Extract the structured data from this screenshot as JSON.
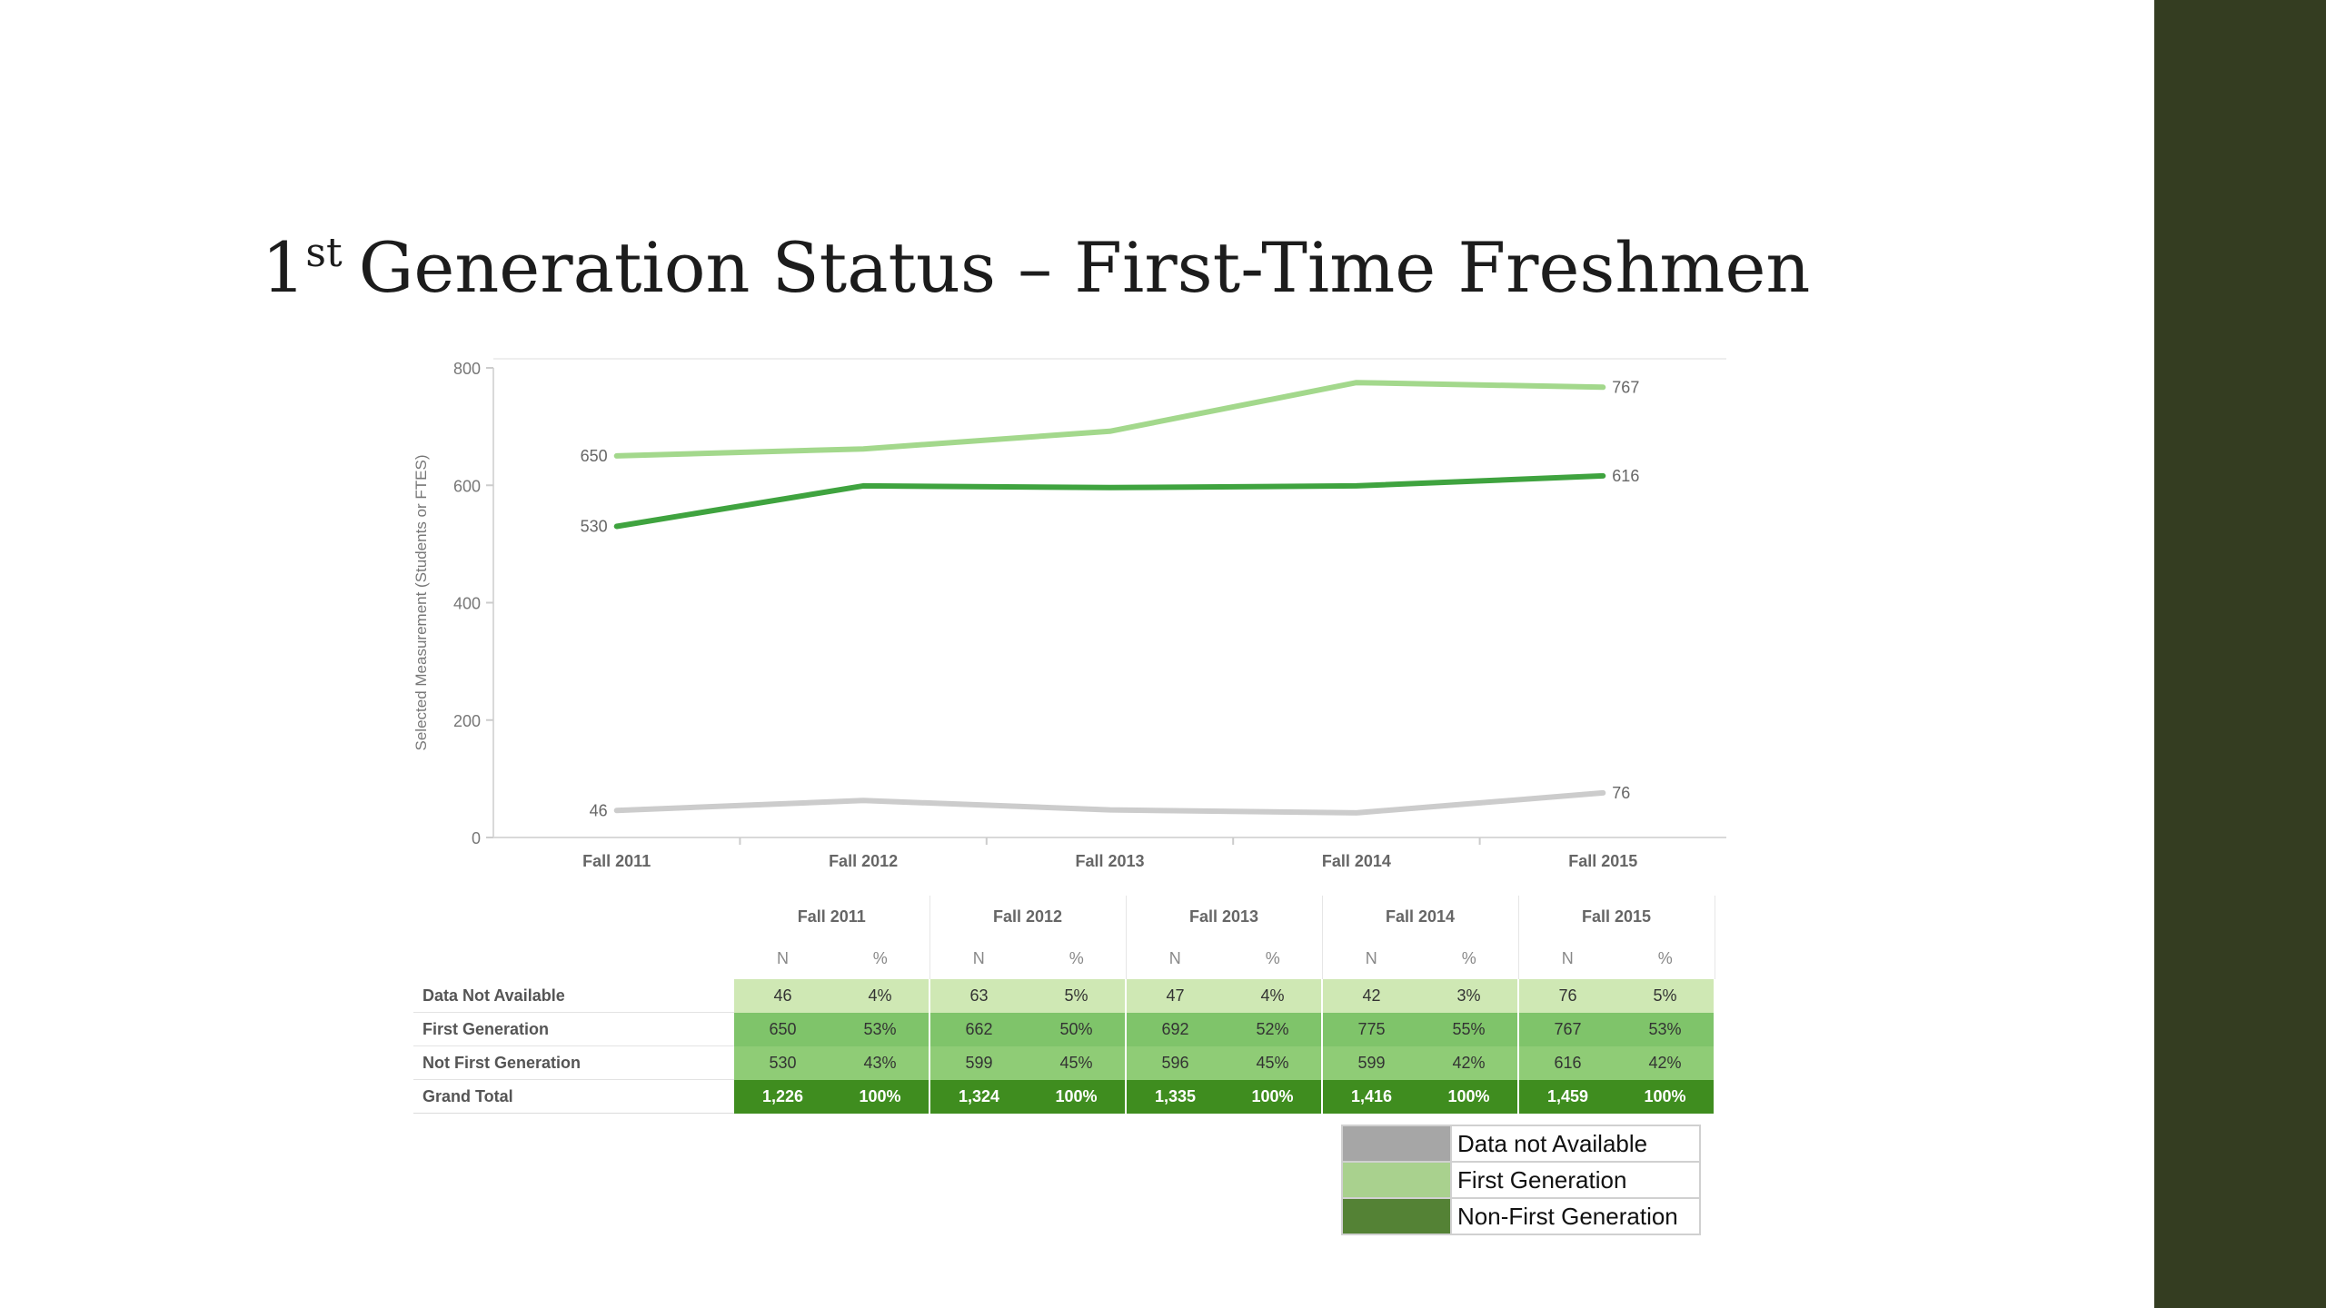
{
  "slide": {
    "title_prefix": "1",
    "title_sup": "st",
    "title_rest": "Generation Status – First-Time Freshmen"
  },
  "chart_data": {
    "type": "line",
    "ylabel": "Selected Measurement (Students or FTES)",
    "ylim": [
      0,
      800
    ],
    "yticks": [
      0,
      200,
      400,
      600,
      800
    ],
    "categories": [
      "Fall 2011",
      "Fall 2012",
      "Fall 2013",
      "Fall 2014",
      "Fall 2015"
    ],
    "grid": false,
    "series": [
      {
        "values": [
          650,
          662,
          692,
          775,
          767
        ],
        "color": "#a3d88c",
        "labels": [
          "650",
          "",
          "",
          "",
          "767"
        ]
      },
      {
        "values": [
          530,
          599,
          596,
          599,
          616
        ],
        "color": "#3fa33f",
        "labels": [
          "530",
          "",
          "",
          "",
          "616"
        ]
      },
      {
        "values": [
          46,
          63,
          47,
          42,
          76
        ],
        "color": "#cccccc",
        "labels": [
          "46",
          "",
          "",
          "",
          "76"
        ]
      }
    ]
  },
  "table": {
    "years": [
      "Fall 2011",
      "Fall 2012",
      "Fall 2013",
      "Fall 2014",
      "Fall 2015"
    ],
    "sub_n": "N",
    "sub_pct": "%",
    "rows": [
      {
        "label": "Data Not Available",
        "cells": [
          "46",
          "4%",
          "63",
          "5%",
          "47",
          "4%",
          "42",
          "3%",
          "76",
          "5%"
        ]
      },
      {
        "label": "First Generation",
        "cells": [
          "650",
          "53%",
          "662",
          "50%",
          "692",
          "52%",
          "775",
          "55%",
          "767",
          "53%"
        ]
      },
      {
        "label": "Not First Generation",
        "cells": [
          "530",
          "43%",
          "599",
          "45%",
          "596",
          "45%",
          "599",
          "42%",
          "616",
          "42%"
        ]
      },
      {
        "label": "Grand Total",
        "cells": [
          "1,226",
          "100%",
          "1,324",
          "100%",
          "1,335",
          "100%",
          "1,416",
          "100%",
          "1,459",
          "100%"
        ]
      }
    ]
  },
  "legend": [
    {
      "label": "Data not Available",
      "color": "#a6a6a6"
    },
    {
      "label": "First Generation",
      "color": "#a9d18e"
    },
    {
      "label": "Non-First Generation",
      "color": "#548235"
    }
  ]
}
